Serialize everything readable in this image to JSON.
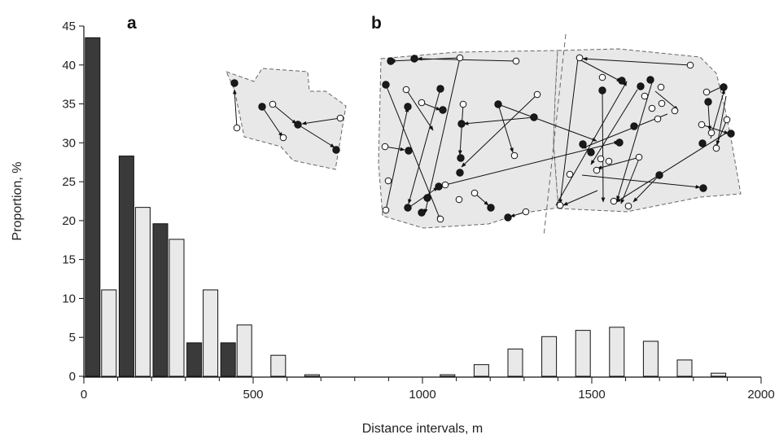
{
  "chart_data": {
    "type": "bar",
    "xlabel": "Distance intervals, m",
    "ylabel": "Proportion, %",
    "xlim": [
      0,
      2000
    ],
    "ylim": [
      0,
      45
    ],
    "xticks": [
      0,
      500,
      1000,
      1500,
      2000
    ],
    "yticks": [
      0,
      5,
      10,
      15,
      20,
      25,
      30,
      35,
      40,
      45
    ],
    "bin_width": 100,
    "grid": false,
    "legend": "none",
    "colors": {
      "dark": "#3a3a3a",
      "light": "#e9e9e9",
      "outline": "#111111"
    },
    "series": [
      {
        "style": "dark",
        "bins_start": [
          0,
          100,
          200,
          300,
          400
        ],
        "values": [
          43.5,
          28.3,
          19.6,
          4.3,
          4.3
        ]
      },
      {
        "style": "light",
        "bins_start": [
          0,
          100,
          200,
          300,
          400,
          500,
          600,
          1000,
          1100,
          1200,
          1300,
          1400,
          1500,
          1600,
          1700,
          1800
        ],
        "values": [
          11.1,
          21.7,
          17.6,
          11.1,
          6.6,
          2.7,
          0.2,
          0.2,
          1.5,
          3.5,
          5.1,
          5.9,
          6.3,
          4.5,
          2.1,
          0.4
        ]
      }
    ],
    "insets": [
      {
        "label": "a",
        "dot_colors": {
          "filled": "#1a1a1a",
          "open": "#ffffff"
        },
        "fill": "#e8e8e8"
      },
      {
        "label": "b",
        "dot_colors": {
          "filled": "#1a1a1a",
          "open": "#ffffff"
        },
        "fill": "#e8e8e8"
      }
    ]
  }
}
